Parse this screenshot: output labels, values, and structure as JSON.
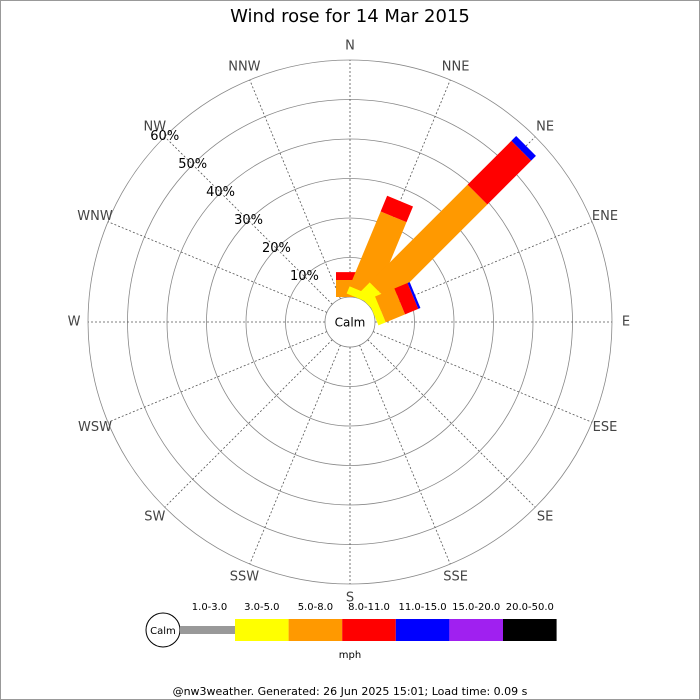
{
  "chart_data": {
    "type": "wind_rose",
    "title": "Wind rose for 14 Mar 2015",
    "directions": [
      "N",
      "NNE",
      "NE",
      "ENE",
      "E",
      "ESE",
      "SE",
      "SSE",
      "S",
      "SSW",
      "SW",
      "WSW",
      "W",
      "WNW",
      "NW",
      "NNW"
    ],
    "rlim": [
      0,
      60
    ],
    "rticks": [
      {
        "value": 10,
        "label": "10%"
      },
      {
        "value": 20,
        "label": "20%"
      },
      {
        "value": 30,
        "label": "30%"
      },
      {
        "value": 40,
        "label": "40%"
      },
      {
        "value": 50,
        "label": "50%"
      },
      {
        "value": 60,
        "label": "60%"
      }
    ],
    "calm_label": "Calm",
    "units": "mph",
    "series": [
      {
        "name": "1.0-3.0",
        "color": "#999999",
        "values": [
          0,
          0,
          0,
          0,
          0,
          0,
          0,
          0,
          0,
          0,
          0,
          0,
          0,
          0,
          0,
          0
        ]
      },
      {
        "name": "3.0-5.0",
        "color": "#ffff00",
        "values": [
          0,
          2,
          4.3,
          2,
          0,
          0,
          0,
          0,
          0,
          0,
          0,
          0,
          0,
          0,
          0,
          0
        ]
      },
      {
        "name": "5.0-8.0",
        "color": "#ff9900",
        "values": [
          4.3,
          20.5,
          35,
          5.3,
          0,
          0,
          0,
          0,
          0,
          0,
          0,
          0,
          0,
          0,
          0,
          0
        ]
      },
      {
        "name": "8.0-11.0",
        "color": "#ff0000",
        "values": [
          2,
          4.3,
          15.7,
          3.6,
          0,
          0,
          0,
          0,
          0,
          0,
          0,
          0,
          0,
          0,
          0,
          0
        ]
      },
      {
        "name": "11.0-15.0",
        "color": "#0000ff",
        "values": [
          0,
          0,
          1.7,
          0.6,
          0,
          0,
          0,
          0,
          0,
          0,
          0,
          0,
          0,
          0,
          0,
          0
        ]
      },
      {
        "name": "15.0-20.0",
        "color": "#a020f0",
        "values": [
          0,
          0,
          0,
          0,
          0,
          0,
          0,
          0,
          0,
          0,
          0,
          0,
          0,
          0,
          0,
          0
        ]
      },
      {
        "name": "20.0-50.0",
        "color": "#000000",
        "values": [
          0,
          0,
          0,
          0,
          0,
          0,
          0,
          0,
          0,
          0,
          0,
          0,
          0,
          0,
          0,
          0
        ]
      }
    ],
    "footer": "@nw3weather. Generated: 26 Jun 2025 15:01; Load time: 0.09 s"
  }
}
